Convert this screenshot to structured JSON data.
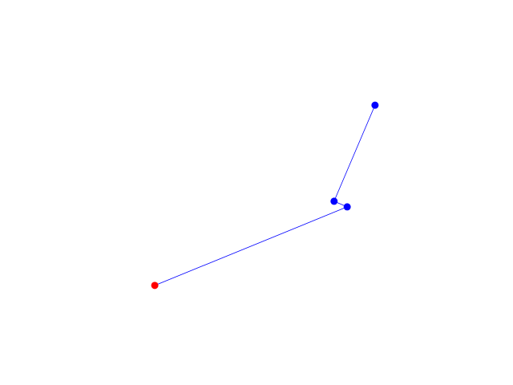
{
  "chart_data": {
    "type": "line",
    "axis_visible": false,
    "xlim": [
      0,
      1
    ],
    "ylim": [
      0,
      1
    ],
    "series": [
      {
        "color": "#0000ff",
        "line_width": 0.8,
        "x": [
          0.228,
          0.712,
          0.679,
          0.782
        ],
        "values": [
          0.193,
          0.458,
          0.477,
          0.801
        ],
        "marker_colors": [
          "#ff0000",
          "#0000ff",
          "#0000ff",
          "#0000ff"
        ]
      }
    ]
  }
}
